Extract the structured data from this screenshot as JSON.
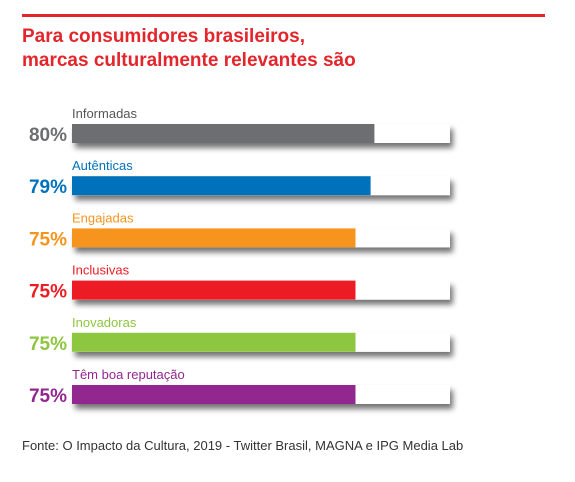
{
  "title_lines": [
    "Para consumidores brasileiros,",
    "marcas culturalmente relevantes são"
  ],
  "source": "Fonte: O Impacto da Cultura, 2019 - Twitter Brasil, MAGNA e IPG Media Lab",
  "colors": {
    "title": "#e3262b",
    "track": "#ffffff",
    "shadow": "#8c8c8c"
  },
  "chart_data": {
    "type": "bar",
    "orientation": "horizontal",
    "categories": [
      "Informadas",
      "Autênticas",
      "Engajadas",
      "Inclusivas",
      "Inovadoras",
      "Têm boa reputação"
    ],
    "values": [
      80,
      79,
      75,
      75,
      75,
      75
    ],
    "value_labels": [
      "80%",
      "79%",
      "75%",
      "75%",
      "75%",
      "75%"
    ],
    "colors": [
      "#6d6e71",
      "#0072bc",
      "#f7941d",
      "#ed1c24",
      "#8dc63f",
      "#92278f"
    ],
    "label_colors": [
      "#555555",
      "#0072bc",
      "#f7941d",
      "#ed1c24",
      "#8dc63f",
      "#92278f"
    ],
    "xlim": [
      0,
      100
    ],
    "grid": false,
    "legend": "none"
  }
}
